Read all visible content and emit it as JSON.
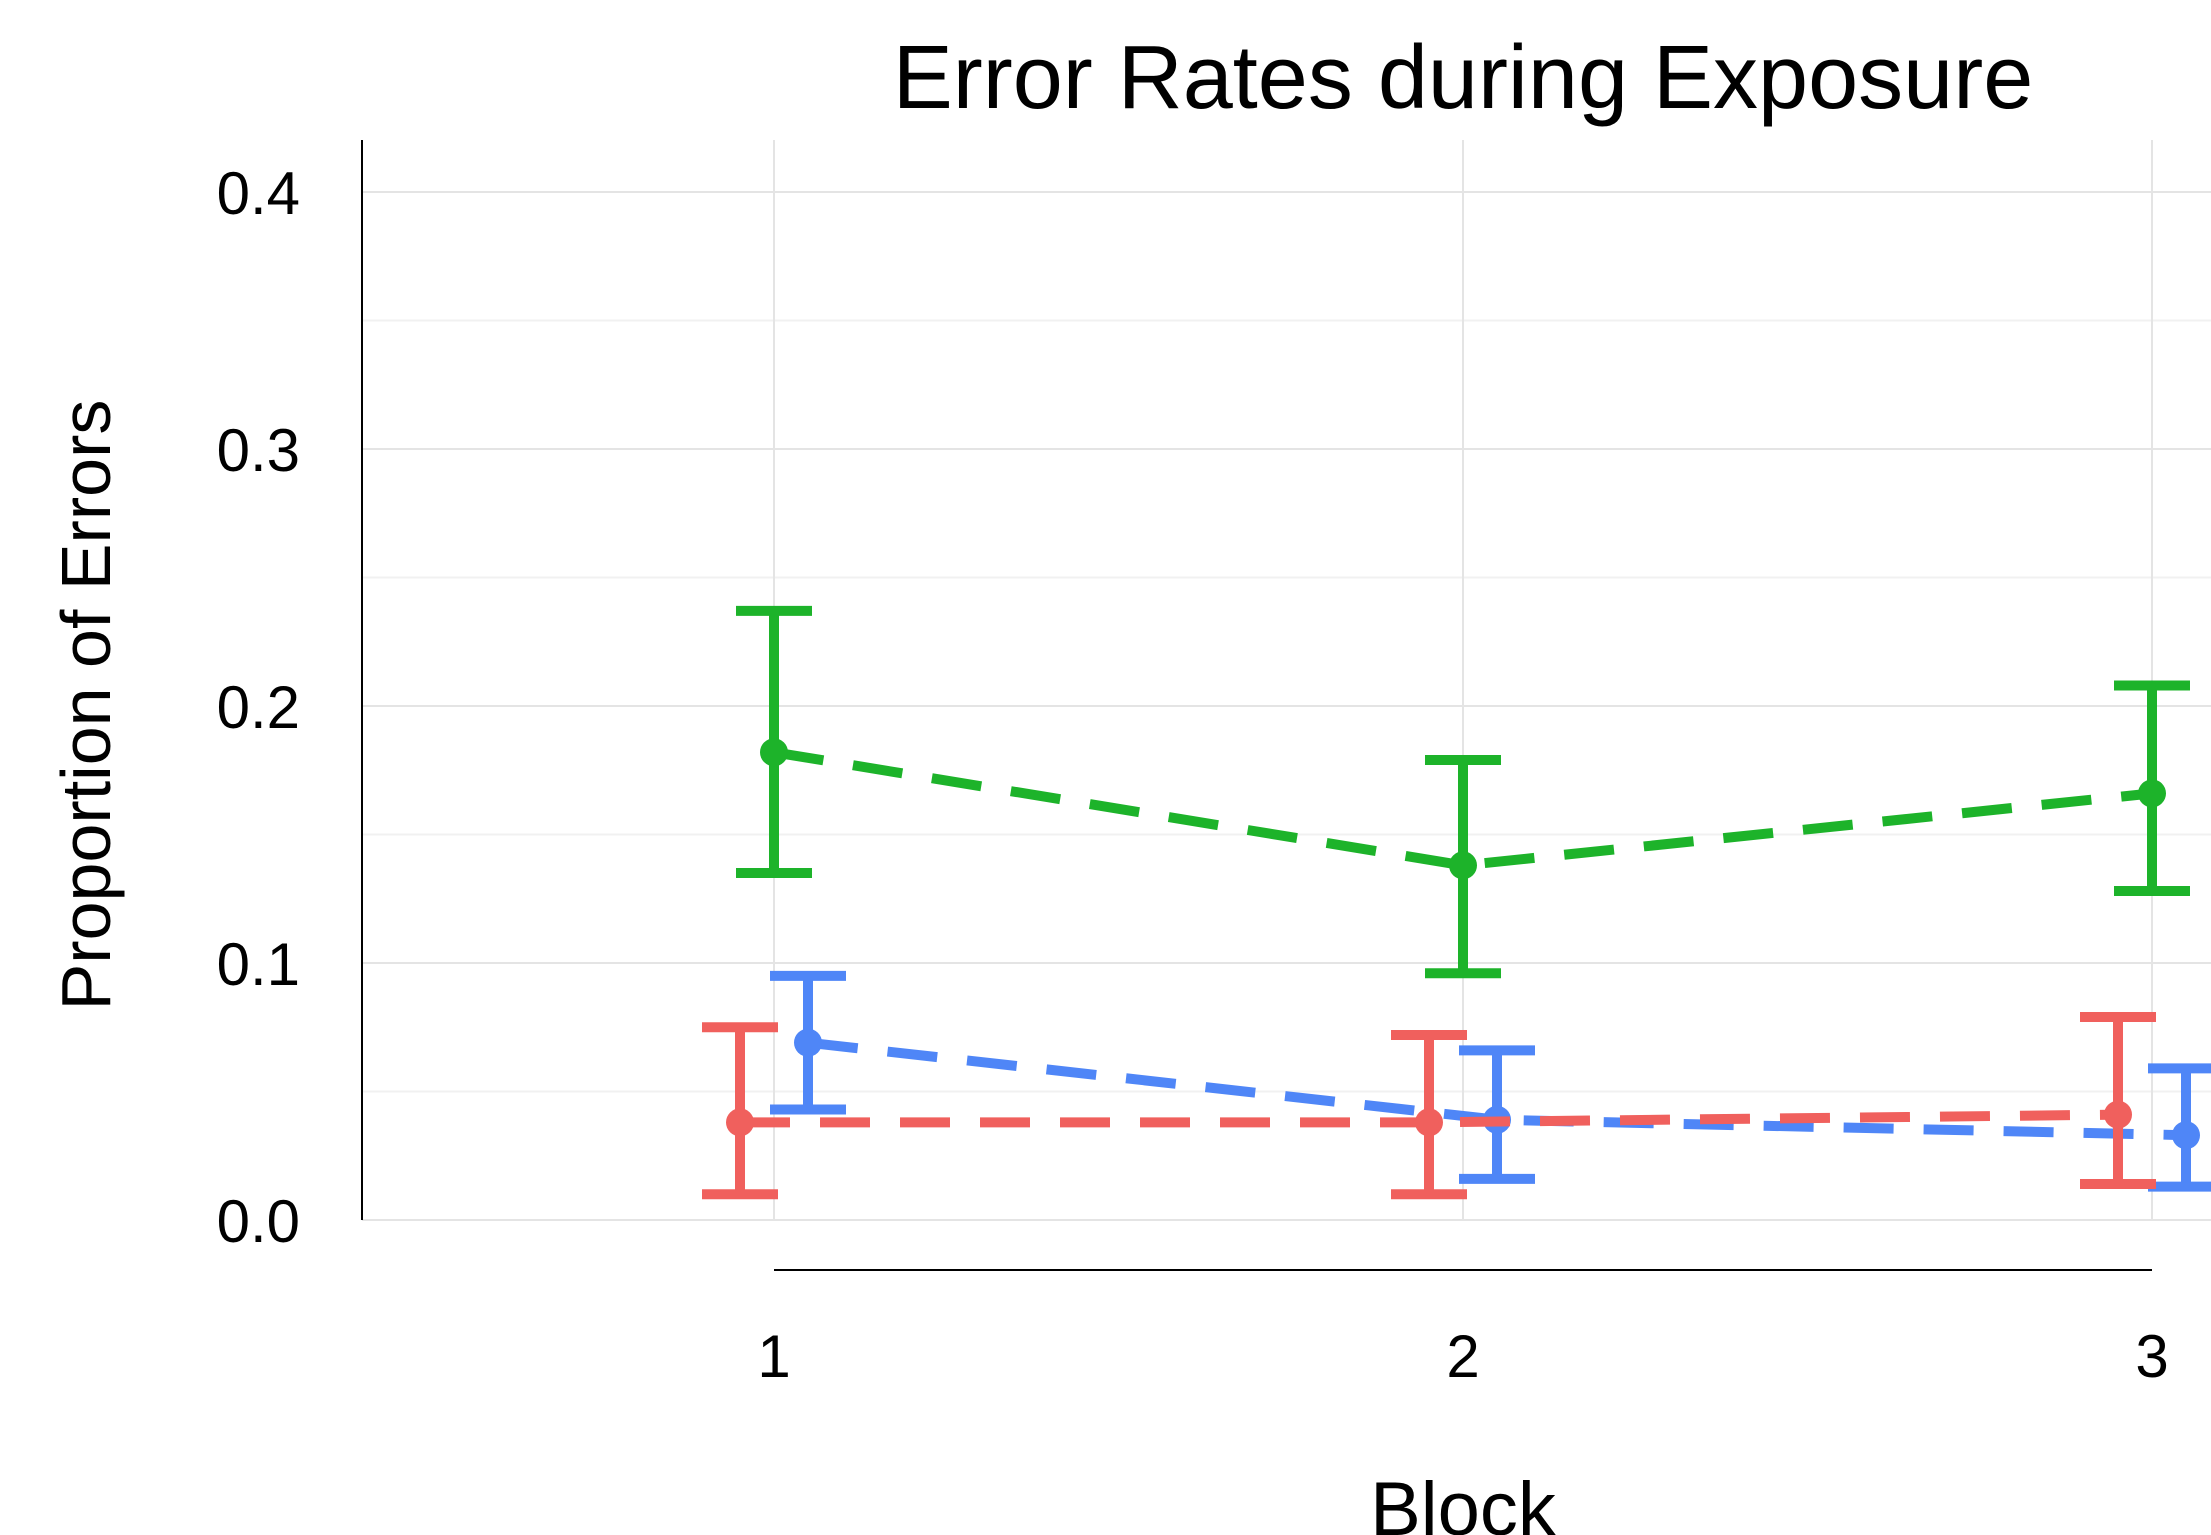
{
  "chart_data": {
    "type": "line",
    "title": "Error Rates during Exposure",
    "xlabel": "Block",
    "ylabel": "Proportion of Errors",
    "x": [
      1,
      2,
      3
    ],
    "x_ticks": [
      "1",
      "2",
      "3"
    ],
    "y_ticks": [
      "0.0",
      "0.1",
      "0.2",
      "0.3",
      "0.4"
    ],
    "ylim": [
      0,
      0.42
    ],
    "grid": true,
    "line_style": "dashed",
    "error_bars": true,
    "series": [
      {
        "color": "#1db32a",
        "values": [
          0.182,
          0.138,
          0.166
        ],
        "lower": [
          0.135,
          0.096,
          0.128
        ],
        "upper": [
          0.237,
          0.179,
          0.208
        ]
      },
      {
        "color": "#4f86f7",
        "values": [
          0.069,
          0.039,
          0.033
        ],
        "lower": [
          0.043,
          0.016,
          0.013
        ],
        "upper": [
          0.095,
          0.066,
          0.059
        ]
      },
      {
        "color": "#f0605d",
        "values": [
          0.038,
          0.038,
          0.041
        ],
        "lower": [
          0.01,
          0.01,
          0.014
        ],
        "upper": [
          0.075,
          0.072,
          0.079
        ]
      }
    ]
  }
}
